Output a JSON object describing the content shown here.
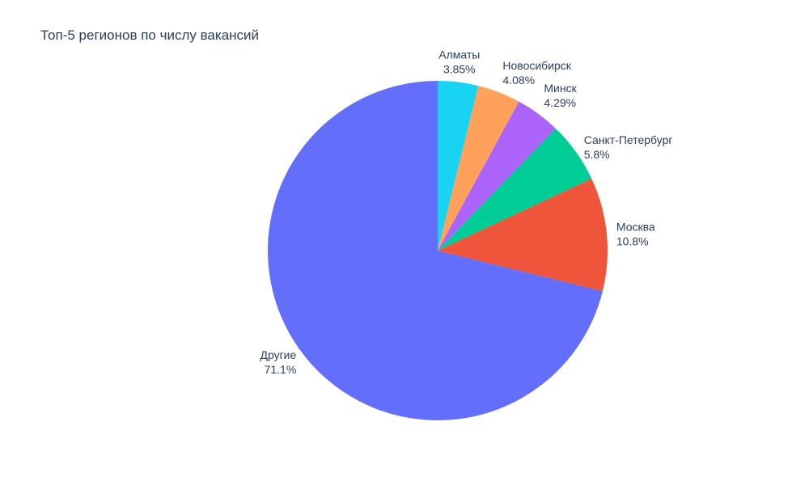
{
  "chart_data": {
    "type": "pie",
    "title": "Топ-5 регионов по числу вакансий",
    "slices": [
      {
        "label": "Другие",
        "percent_text": "71.1%",
        "value": 71.1,
        "color": "#636efa"
      },
      {
        "label": "Москва",
        "percent_text": "10.8%",
        "value": 10.8,
        "color": "#ef553b"
      },
      {
        "label": "Санкт-Петербург",
        "percent_text": "5.8%",
        "value": 5.8,
        "color": "#00cc96"
      },
      {
        "label": "Минск",
        "percent_text": "4.29%",
        "value": 4.29,
        "color": "#ab63fa"
      },
      {
        "label": "Новосибирск",
        "percent_text": "4.08%",
        "value": 4.08,
        "color": "#ffa15a"
      },
      {
        "label": "Алматы",
        "percent_text": "3.85%",
        "value": 3.85,
        "color": "#19d3f3"
      }
    ],
    "direction": "counterclockwise",
    "start_angle": "top",
    "text_color": "#2a3f5f"
  }
}
